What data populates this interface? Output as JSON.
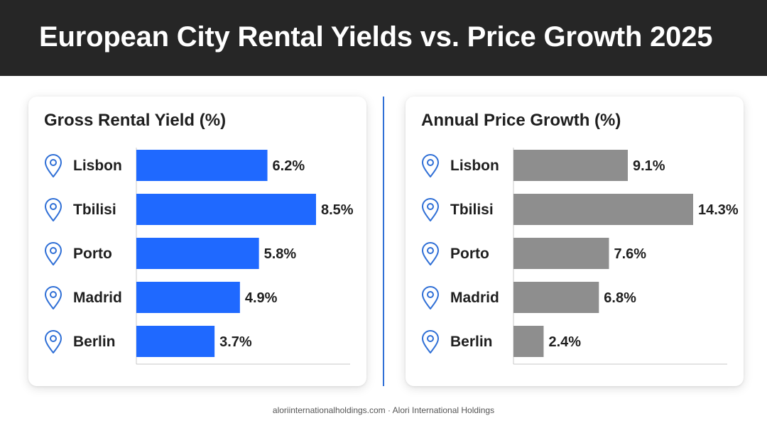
{
  "header": {
    "title": "European City Rental Yields vs. Price Growth 2025"
  },
  "footer": {
    "text": "aloriinternationalholdings.com · Alori International Holdings"
  },
  "colors": {
    "header_bg": "#262626",
    "yield_bar": "#1f69ff",
    "growth_bar": "#8e8e8e",
    "divider": "#2f6fd6",
    "pin_icon": "#2f6fd6"
  },
  "icons": {
    "city_marker": "map-pin-icon"
  },
  "chart_data": [
    {
      "type": "bar",
      "orientation": "horizontal",
      "title": "Gross Rental Yield (%)",
      "categories": [
        "Lisbon",
        "Tbilisi",
        "Porto",
        "Madrid",
        "Berlin"
      ],
      "values": [
        6.2,
        8.5,
        5.8,
        4.9,
        3.7
      ],
      "value_labels": [
        "6.2%",
        "8.5%",
        "5.8%",
        "4.9%",
        "3.7%"
      ],
      "xlim": [
        0,
        8.5
      ],
      "color": "#1f69ff",
      "grid": false,
      "legend": "none"
    },
    {
      "type": "bar",
      "orientation": "horizontal",
      "title": "Annual Price Growth (%)",
      "categories": [
        "Lisbon",
        "Tbilisi",
        "Porto",
        "Madrid",
        "Berlin"
      ],
      "values": [
        9.1,
        14.3,
        7.6,
        6.8,
        2.4
      ],
      "value_labels": [
        "9.1%",
        "14.3%",
        "7.6%",
        "6.8%",
        "2.4%"
      ],
      "xlim": [
        0,
        14.3
      ],
      "color": "#8e8e8e",
      "grid": false,
      "legend": "none"
    }
  ]
}
